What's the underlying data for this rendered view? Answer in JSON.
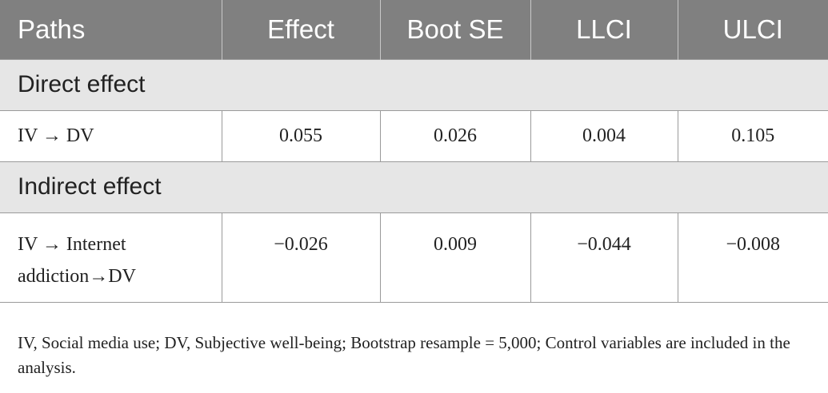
{
  "table": {
    "headers": [
      "Paths",
      "Effect",
      "Boot SE",
      "LLCI",
      "ULCI"
    ],
    "sections": [
      {
        "title": "Direct effect",
        "rows": [
          {
            "path": "IV → DV",
            "effect": "0.055",
            "boot_se": "0.026",
            "llci": "0.004",
            "ulci": "0.105"
          }
        ]
      },
      {
        "title": "Indirect effect",
        "rows": [
          {
            "path": "IV → Internet addiction→DV",
            "effect": "−0.026",
            "boot_se": "0.009",
            "llci": "−0.044",
            "ulci": "−0.008"
          }
        ]
      }
    ]
  },
  "footnote": "IV, Social media use; DV, Subjective well-being; Bootstrap resample = 5,000; Control variables are included in the analysis.",
  "colors": {
    "header_bg": "#808080",
    "section_bg": "#e6e6e6",
    "border": "#9a9a9a"
  }
}
